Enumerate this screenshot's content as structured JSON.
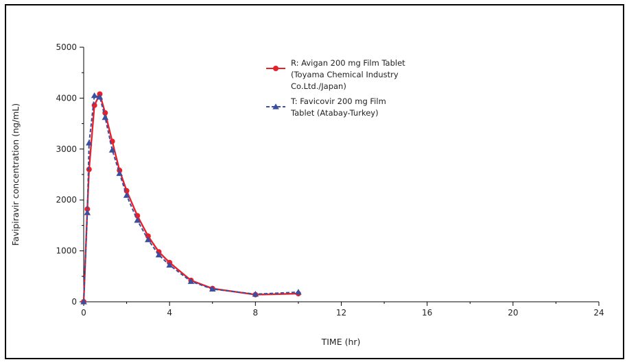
{
  "chart_data": {
    "type": "line",
    "xlabel": "TIME (hr)",
    "ylabel": "Favipiravir concentration (ng/mL)",
    "xlim": [
      0,
      24
    ],
    "ylim": [
      0,
      5000
    ],
    "xticks": [
      0,
      4,
      8,
      12,
      16,
      20,
      24
    ],
    "yticks": [
      0,
      1000,
      2000,
      3000,
      4000,
      5000
    ],
    "grid": false,
    "legend_position": "top-center",
    "series": [
      {
        "name": "R: Avigan 200 mg Film Tablet (Toyama Chemical Industry Co.Ltd./Japan)",
        "legend_lines": [
          "R: Avigan 200 mg Film Tablet",
          "(Toyama Chemical Industry",
          "Co.Ltd./Japan)"
        ],
        "color": "#e8202a",
        "marker": "circle",
        "line_style": "solid",
        "x": [
          0,
          0.17,
          0.25,
          0.5,
          0.75,
          1,
          1.33,
          1.67,
          2,
          2.5,
          3,
          3.5,
          4,
          5,
          6,
          8,
          10
        ],
        "y": [
          0,
          1820,
          2600,
          3860,
          4080,
          3710,
          3150,
          2580,
          2180,
          1690,
          1290,
          980,
          770,
          420,
          260,
          140,
          160
        ]
      },
      {
        "name": "T: Favicovir 200 mg Film Tablet (Atabay-Turkey)",
        "legend_lines": [
          "T: Favicovir 200 mg Film",
          "Tablet (Atabay-Turkey)"
        ],
        "color": "#3a4fa0",
        "marker": "triangle",
        "line_style": "dashed",
        "x": [
          0,
          0.17,
          0.25,
          0.5,
          0.75,
          1,
          1.33,
          1.67,
          2,
          2.5,
          3,
          3.5,
          4,
          5,
          6,
          8,
          10
        ],
        "y": [
          0,
          1750,
          3120,
          4050,
          4020,
          3620,
          2980,
          2520,
          2090,
          1600,
          1220,
          920,
          720,
          400,
          250,
          150,
          190
        ]
      }
    ]
  }
}
